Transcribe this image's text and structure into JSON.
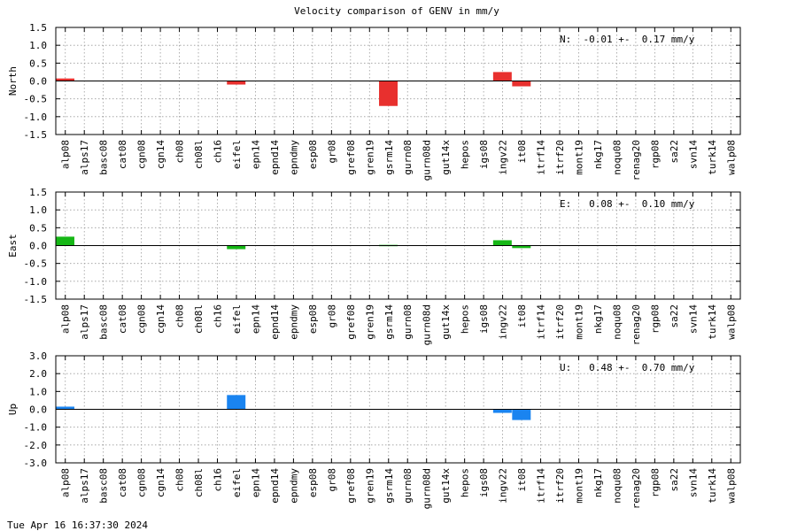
{
  "title": "Velocity comparison of GENV in mm/y",
  "timestamp": "Tue Apr 16 16:37:30 2024",
  "chart_data": {
    "type": "bar",
    "categories": [
      "alp08",
      "alps17",
      "basc08",
      "cat08",
      "cgn08",
      "cgn14",
      "ch08",
      "ch08l",
      "ch16",
      "eifel",
      "epn14",
      "epnd14",
      "epndmy",
      "esp08",
      "gr08",
      "gref08",
      "gren19",
      "gsrm14",
      "gurn08",
      "gurn08d",
      "gut14x",
      "hepos",
      "igs08",
      "ingv22",
      "it08",
      "itrf14",
      "itrf20",
      "mont19",
      "nkg17",
      "noqu08",
      "renag20",
      "rgp08",
      "sa22",
      "svn14",
      "turk14",
      "walp08"
    ],
    "panels": [
      {
        "ylabel": "North",
        "color": "#e8302e",
        "ylim": [
          -1.5,
          1.5
        ],
        "yticks": [
          "1.5",
          "1.0",
          "0.5",
          "0.0",
          "-0.5",
          "-1.0",
          "-1.5"
        ],
        "ytick_values": [
          1.5,
          1.0,
          0.5,
          0.0,
          -0.5,
          -1.0,
          -1.5
        ],
        "annotation": "N:  -0.01 +-  0.17 mm/y",
        "values": [
          0.07,
          0,
          0,
          0,
          0,
          0,
          0,
          0,
          0,
          -0.1,
          0,
          0,
          0,
          0,
          0,
          0,
          0,
          -0.7,
          0,
          0,
          0,
          0,
          0,
          0.25,
          -0.15,
          0,
          0,
          0,
          0,
          0,
          0,
          0,
          0,
          0,
          0,
          0
        ]
      },
      {
        "ylabel": "East",
        "color": "#16b716",
        "ylim": [
          -1.5,
          1.5
        ],
        "yticks": [
          "1.5",
          "1.0",
          "0.5",
          "0.0",
          "-0.5",
          "-1.0",
          "-1.5"
        ],
        "ytick_values": [
          1.5,
          1.0,
          0.5,
          0.0,
          -0.5,
          -1.0,
          -1.5
        ],
        "annotation": "E:   0.08 +-  0.10 mm/y",
        "values": [
          0.25,
          0,
          0,
          0,
          0,
          0,
          0,
          0,
          0,
          -0.1,
          0,
          0,
          0,
          0,
          0,
          0,
          0,
          0.02,
          0,
          0,
          0,
          0,
          0,
          0.15,
          -0.07,
          0,
          0,
          0,
          0,
          0,
          0,
          0,
          0,
          0,
          0,
          0
        ]
      },
      {
        "ylabel": "Up",
        "color": "#1a84f0",
        "ylim": [
          -3.0,
          3.0
        ],
        "yticks": [
          "3.0",
          "2.0",
          "1.0",
          "0.0",
          "-1.0",
          "-2.0",
          "-3.0"
        ],
        "ytick_values": [
          3.0,
          2.0,
          1.0,
          0.0,
          -1.0,
          -2.0,
          -3.0
        ],
        "annotation": "U:   0.48 +-  0.70 mm/y",
        "values": [
          0.15,
          0,
          0,
          0,
          0,
          0,
          0,
          0,
          0,
          0.8,
          0,
          0,
          0,
          0,
          0,
          0,
          0,
          0,
          0,
          0,
          0,
          0,
          0,
          -0.2,
          -0.6,
          0,
          0,
          0,
          0,
          0,
          0,
          0,
          0,
          0,
          0,
          0
        ]
      }
    ],
    "grid": true,
    "legend": "none"
  }
}
